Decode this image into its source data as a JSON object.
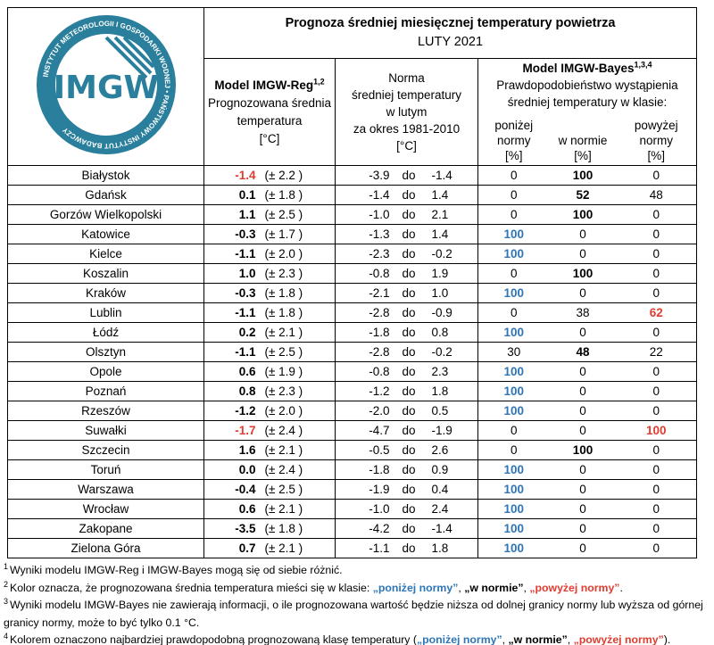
{
  "header": {
    "title": "Prognoza średniej miesięcznej temperatury powietrza",
    "subtitle": "LUTY 2021",
    "logo": "IMGW",
    "logo_ring": "INSTYTUT METEOROLOGII I GOSPODARKI WODNEJ • PAŃSTWOWY INSTYTUT BADAWCZY"
  },
  "columns": {
    "reg": {
      "name": "Model IMGW-Reg",
      "sup": "1,2",
      "lines": [
        "Prognozowana średnia",
        "temperatura",
        "[°C]"
      ]
    },
    "norm": {
      "lines": [
        "Norma",
        "średniej temperatury",
        "w lutym",
        "za okres 1981-2010",
        "[°C]"
      ]
    },
    "bayes": {
      "name": "Model IMGW-Bayes",
      "sup": "1,3,4",
      "lines": [
        "Prawdopodobieństwo wystąpienia",
        "średniej temperatury w klasie:"
      ],
      "classes": [
        [
          "poniżej",
          "normy",
          "[%]"
        ],
        [
          "w normie",
          "[%]"
        ],
        [
          "powyżej",
          "normy",
          "[%]"
        ]
      ]
    },
    "norm_sep": "do"
  },
  "styles": {
    "below": "#2e75b6",
    "above": "#e03c31",
    "normal": "#000000"
  },
  "table": {
    "rows": [
      {
        "city": "Białystok",
        "forecast": "-1.4",
        "uncertainty": "(± 2.2 )",
        "norm_low": "-3.9",
        "norm_high": "-1.4",
        "below": "0",
        "normal": "100",
        "above": "0",
        "forecast_class": "above",
        "likely": "normal"
      },
      {
        "city": "Gdańsk",
        "forecast": "0.1",
        "uncertainty": "(± 1.8 )",
        "norm_low": "-1.4",
        "norm_high": "1.4",
        "below": "0",
        "normal": "52",
        "above": "48",
        "forecast_class": "normal",
        "likely": "normal"
      },
      {
        "city": "Gorzów Wielkopolski",
        "forecast": "1.1",
        "uncertainty": "(± 2.5 )",
        "norm_low": "-1.0",
        "norm_high": "2.1",
        "below": "0",
        "normal": "100",
        "above": "0",
        "forecast_class": "normal",
        "likely": "normal"
      },
      {
        "city": "Katowice",
        "forecast": "-0.3",
        "uncertainty": "(± 1.7 )",
        "norm_low": "-1.3",
        "norm_high": "1.4",
        "below": "100",
        "normal": "0",
        "above": "0",
        "forecast_class": "normal",
        "likely": "below"
      },
      {
        "city": "Kielce",
        "forecast": "-1.1",
        "uncertainty": "(± 2.0 )",
        "norm_low": "-2.3",
        "norm_high": "-0.2",
        "below": "100",
        "normal": "0",
        "above": "0",
        "forecast_class": "normal",
        "likely": "below"
      },
      {
        "city": "Koszalin",
        "forecast": "1.0",
        "uncertainty": "(± 2.3 )",
        "norm_low": "-0.8",
        "norm_high": "1.9",
        "below": "0",
        "normal": "100",
        "above": "0",
        "forecast_class": "normal",
        "likely": "normal"
      },
      {
        "city": "Kraków",
        "forecast": "-0.3",
        "uncertainty": "(± 1.8 )",
        "norm_low": "-2.1",
        "norm_high": "1.0",
        "below": "100",
        "normal": "0",
        "above": "0",
        "forecast_class": "normal",
        "likely": "below"
      },
      {
        "city": "Lublin",
        "forecast": "-1.1",
        "uncertainty": "(± 1.8 )",
        "norm_low": "-2.8",
        "norm_high": "-0.9",
        "below": "0",
        "normal": "38",
        "above": "62",
        "forecast_class": "normal",
        "likely": "above"
      },
      {
        "city": "Łódź",
        "forecast": "0.2",
        "uncertainty": "(± 2.1 )",
        "norm_low": "-1.8",
        "norm_high": "0.8",
        "below": "100",
        "normal": "0",
        "above": "0",
        "forecast_class": "normal",
        "likely": "below"
      },
      {
        "city": "Olsztyn",
        "forecast": "-1.1",
        "uncertainty": "(± 2.5 )",
        "norm_low": "-2.8",
        "norm_high": "-0.2",
        "below": "30",
        "normal": "48",
        "above": "22",
        "forecast_class": "normal",
        "likely": "normal"
      },
      {
        "city": "Opole",
        "forecast": "0.6",
        "uncertainty": "(± 1.9 )",
        "norm_low": "-0.8",
        "norm_high": "2.3",
        "below": "100",
        "normal": "0",
        "above": "0",
        "forecast_class": "normal",
        "likely": "below"
      },
      {
        "city": "Poznań",
        "forecast": "0.8",
        "uncertainty": "(± 2.3 )",
        "norm_low": "-1.2",
        "norm_high": "1.8",
        "below": "100",
        "normal": "0",
        "above": "0",
        "forecast_class": "normal",
        "likely": "below"
      },
      {
        "city": "Rzeszów",
        "forecast": "-1.2",
        "uncertainty": "(± 2.0 )",
        "norm_low": "-2.0",
        "norm_high": "0.5",
        "below": "100",
        "normal": "0",
        "above": "0",
        "forecast_class": "normal",
        "likely": "below"
      },
      {
        "city": "Suwałki",
        "forecast": "-1.7",
        "uncertainty": "(± 2.4 )",
        "norm_low": "-4.7",
        "norm_high": "-1.9",
        "below": "0",
        "normal": "0",
        "above": "100",
        "forecast_class": "above",
        "likely": "above"
      },
      {
        "city": "Szczecin",
        "forecast": "1.6",
        "uncertainty": "(± 2.1 )",
        "norm_low": "-0.5",
        "norm_high": "2.6",
        "below": "0",
        "normal": "100",
        "above": "0",
        "forecast_class": "normal",
        "likely": "normal"
      },
      {
        "city": "Toruń",
        "forecast": "0.0",
        "uncertainty": "(± 2.4 )",
        "norm_low": "-1.8",
        "norm_high": "0.9",
        "below": "100",
        "normal": "0",
        "above": "0",
        "forecast_class": "normal",
        "likely": "below"
      },
      {
        "city": "Warszawa",
        "forecast": "-0.4",
        "uncertainty": "(± 2.5 )",
        "norm_low": "-1.9",
        "norm_high": "0.4",
        "below": "100",
        "normal": "0",
        "above": "0",
        "forecast_class": "normal",
        "likely": "below"
      },
      {
        "city": "Wrocław",
        "forecast": "0.6",
        "uncertainty": "(± 2.1 )",
        "norm_low": "-1.0",
        "norm_high": "2.4",
        "below": "100",
        "normal": "0",
        "above": "0",
        "forecast_class": "normal",
        "likely": "below"
      },
      {
        "city": "Zakopane",
        "forecast": "-3.5",
        "uncertainty": "(± 1.8 )",
        "norm_low": "-4.2",
        "norm_high": "-1.4",
        "below": "100",
        "normal": "0",
        "above": "0",
        "forecast_class": "normal",
        "likely": "below"
      },
      {
        "city": "Zielona Góra",
        "forecast": "0.7",
        "uncertainty": "(± 2.1 )",
        "norm_low": "-1.1",
        "norm_high": "1.8",
        "below": "100",
        "normal": "0",
        "above": "0",
        "forecast_class": "normal",
        "likely": "below"
      }
    ]
  },
  "footnotes": [
    {
      "mark": "1",
      "parts": [
        {
          "text": "Wyniki modelu IMGW-Reg i IMGW-Bayes mogą się od siebie różnić.",
          "style": "plain"
        }
      ]
    },
    {
      "mark": "2",
      "parts": [
        {
          "text": "Kolor oznacza, że prognozowana średnia temperatura mieści się w klasie: ",
          "style": "plain"
        },
        {
          "text": "„poniżej normy”",
          "style": "below"
        },
        {
          "text": ", ",
          "style": "plain"
        },
        {
          "text": "„w normie”",
          "style": "normal"
        },
        {
          "text": ", ",
          "style": "plain"
        },
        {
          "text": "„powyżej normy”",
          "style": "above"
        },
        {
          "text": ".",
          "style": "plain"
        }
      ]
    },
    {
      "mark": "3",
      "parts": [
        {
          "text": "Wyniki modelu IMGW-Bayes nie zawierają informacji, o ile prognozowana wartość będzie niższa od dolnej granicy normy lub wyższa od górnej granicy normy, może to być tylko 0.1 °C.",
          "style": "plain"
        }
      ]
    },
    {
      "mark": "4",
      "parts": [
        {
          "text": "Kolorem oznaczono najbardziej prawdopodobną prognozowaną klasę temperatury (",
          "style": "plain"
        },
        {
          "text": "„poniżej normy”",
          "style": "below"
        },
        {
          "text": ", ",
          "style": "plain"
        },
        {
          "text": "„w normie”",
          "style": "normal"
        },
        {
          "text": ", ",
          "style": "plain"
        },
        {
          "text": "„powyżej normy”",
          "style": "above"
        },
        {
          "text": ").",
          "style": "plain"
        }
      ]
    }
  ]
}
